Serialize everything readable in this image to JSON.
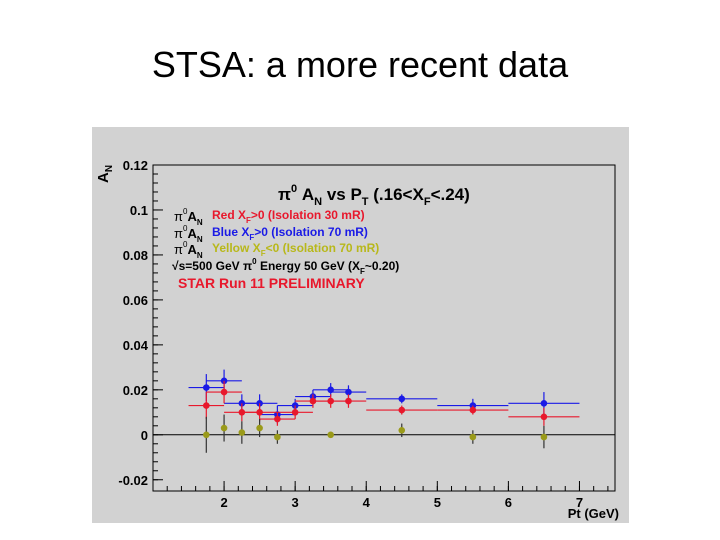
{
  "slide": {
    "title": "STSA: a more recent data"
  },
  "colors": {
    "canvas_bg": "#d2d2d2",
    "frame_bg": "#ffffff",
    "red": "#e8182c",
    "blue": "#1a1ae6",
    "yellow": "#9a9a1a",
    "legend_red": "#e8182c",
    "legend_blue": "#1a1ae6",
    "legend_yellow": "#b8b81a",
    "run_label": "#e8182c"
  },
  "chart_data": {
    "type": "scatter",
    "title": "π⁰ A_N vs P_T (.16<X_F<.24)",
    "title_parts": {
      "pre": "π",
      "sup": "0",
      "mid1": " A",
      "sub1": "N",
      "mid2": " vs P",
      "sub2": "T",
      "mid3": " (.16<X",
      "sub3": "F",
      "post": "<.24)"
    },
    "xlabel": "Pt (GeV)",
    "ylabel": "A_N",
    "ylabel_parts": {
      "main": "A",
      "sub": "N"
    },
    "xlim": [
      1.0,
      7.5
    ],
    "ylim": [
      -0.025,
      0.12
    ],
    "x_ticks": [
      "2",
      "3",
      "4",
      "5",
      "6",
      "7"
    ],
    "y_ticks": [
      "0.12",
      "0.1",
      "0.08",
      "0.06",
      "0.04",
      "0.02",
      "0",
      "-0.02"
    ],
    "zero_line": true,
    "legend_position": "top-left",
    "legend": [
      {
        "prefix": "π⁰ A_N",
        "text": "Red X_F>0 (Isolation 30 mR)",
        "color": "red",
        "parts": {
          "a": "Red X",
          "sub": "F",
          "b": ">0 (Isolation 30 mR)"
        }
      },
      {
        "prefix": "π⁰ A_N",
        "text": "Blue X_F>0 (Isolation 70 mR)",
        "color": "blue",
        "parts": {
          "a": "Blue X",
          "sub": "F",
          "b": ">0 (Isolation 70 mR)"
        }
      },
      {
        "prefix": "π⁰ A_N",
        "text": "Yellow X_F<0 (Isolation 70 mR)",
        "color": "yellow",
        "parts": {
          "a": "Yellow X",
          "sub": "F",
          "b": "<0 (Isolation 70 mR)"
        }
      }
    ],
    "energy_note": "√s=500 GeV π⁰ Energy 50 GeV (X_F~0.20)",
    "energy_parts": {
      "a": "√s=500 GeV π",
      "sup": "0",
      "b": " Energy 50 GeV (X",
      "sub": "F",
      "c": "~0.20)"
    },
    "run_label": "STAR Run 11 PRELIMINARY",
    "series": [
      {
        "name": "Blue X_F>0 (Isolation 70 mR)",
        "color": "blue",
        "points": [
          {
            "x": 1.75,
            "y": 0.021,
            "xerr": 0.25,
            "yerr": 0.006
          },
          {
            "x": 2.0,
            "y": 0.024,
            "xerr": 0.25,
            "yerr": 0.005
          },
          {
            "x": 2.25,
            "y": 0.014,
            "xerr": 0.25,
            "yerr": 0.004
          },
          {
            "x": 2.5,
            "y": 0.014,
            "xerr": 0.25,
            "yerr": 0.004
          },
          {
            "x": 2.75,
            "y": 0.009,
            "xerr": 0.25,
            "yerr": 0.004
          },
          {
            "x": 3.0,
            "y": 0.013,
            "xerr": 0.25,
            "yerr": 0.003
          },
          {
            "x": 3.25,
            "y": 0.017,
            "xerr": 0.25,
            "yerr": 0.003
          },
          {
            "x": 3.5,
            "y": 0.02,
            "xerr": 0.25,
            "yerr": 0.003
          },
          {
            "x": 3.75,
            "y": 0.019,
            "xerr": 0.25,
            "yerr": 0.003
          },
          {
            "x": 4.5,
            "y": 0.016,
            "xerr": 0.5,
            "yerr": 0.002
          },
          {
            "x": 5.5,
            "y": 0.013,
            "xerr": 0.5,
            "yerr": 0.003
          },
          {
            "x": 6.5,
            "y": 0.014,
            "xerr": 0.5,
            "yerr": 0.005
          }
        ]
      },
      {
        "name": "Red X_F>0 (Isolation 30 mR)",
        "color": "red",
        "points": [
          {
            "x": 1.75,
            "y": 0.013,
            "xerr": 0.25,
            "yerr": 0.006
          },
          {
            "x": 2.0,
            "y": 0.019,
            "xerr": 0.25,
            "yerr": 0.005
          },
          {
            "x": 2.25,
            "y": 0.01,
            "xerr": 0.25,
            "yerr": 0.004
          },
          {
            "x": 2.5,
            "y": 0.01,
            "xerr": 0.25,
            "yerr": 0.004
          },
          {
            "x": 2.75,
            "y": 0.007,
            "xerr": 0.25,
            "yerr": 0.003
          },
          {
            "x": 3.0,
            "y": 0.01,
            "xerr": 0.25,
            "yerr": 0.003
          },
          {
            "x": 3.25,
            "y": 0.015,
            "xerr": 0.25,
            "yerr": 0.003
          },
          {
            "x": 3.5,
            "y": 0.015,
            "xerr": 0.25,
            "yerr": 0.003
          },
          {
            "x": 3.75,
            "y": 0.015,
            "xerr": 0.25,
            "yerr": 0.003
          },
          {
            "x": 4.5,
            "y": 0.011,
            "xerr": 0.5,
            "yerr": 0.002
          },
          {
            "x": 5.5,
            "y": 0.011,
            "xerr": 0.5,
            "yerr": 0.002
          },
          {
            "x": 6.5,
            "y": 0.008,
            "xerr": 0.5,
            "yerr": 0.004
          }
        ]
      },
      {
        "name": "Yellow X_F<0 (Isolation 70 mR)",
        "color": "yellow",
        "points": [
          {
            "x": 1.75,
            "y": 0.0,
            "xerr": 0.0,
            "yerr": 0.008
          },
          {
            "x": 2.0,
            "y": 0.003,
            "xerr": 0.0,
            "yerr": 0.006
          },
          {
            "x": 2.25,
            "y": 0.001,
            "xerr": 0.0,
            "yerr": 0.005
          },
          {
            "x": 2.5,
            "y": 0.003,
            "xerr": 0.0,
            "yerr": 0.004
          },
          {
            "x": 2.75,
            "y": -0.001,
            "xerr": 0.0,
            "yerr": 0.003
          },
          {
            "x": 3.5,
            "y": 0.0,
            "xerr": 0.0,
            "yerr": 0.001
          },
          {
            "x": 4.5,
            "y": 0.002,
            "xerr": 0.0,
            "yerr": 0.003
          },
          {
            "x": 5.5,
            "y": -0.001,
            "xerr": 0.0,
            "yerr": 0.003
          },
          {
            "x": 6.5,
            "y": -0.001,
            "xerr": 0.0,
            "yerr": 0.005
          }
        ]
      }
    ]
  }
}
